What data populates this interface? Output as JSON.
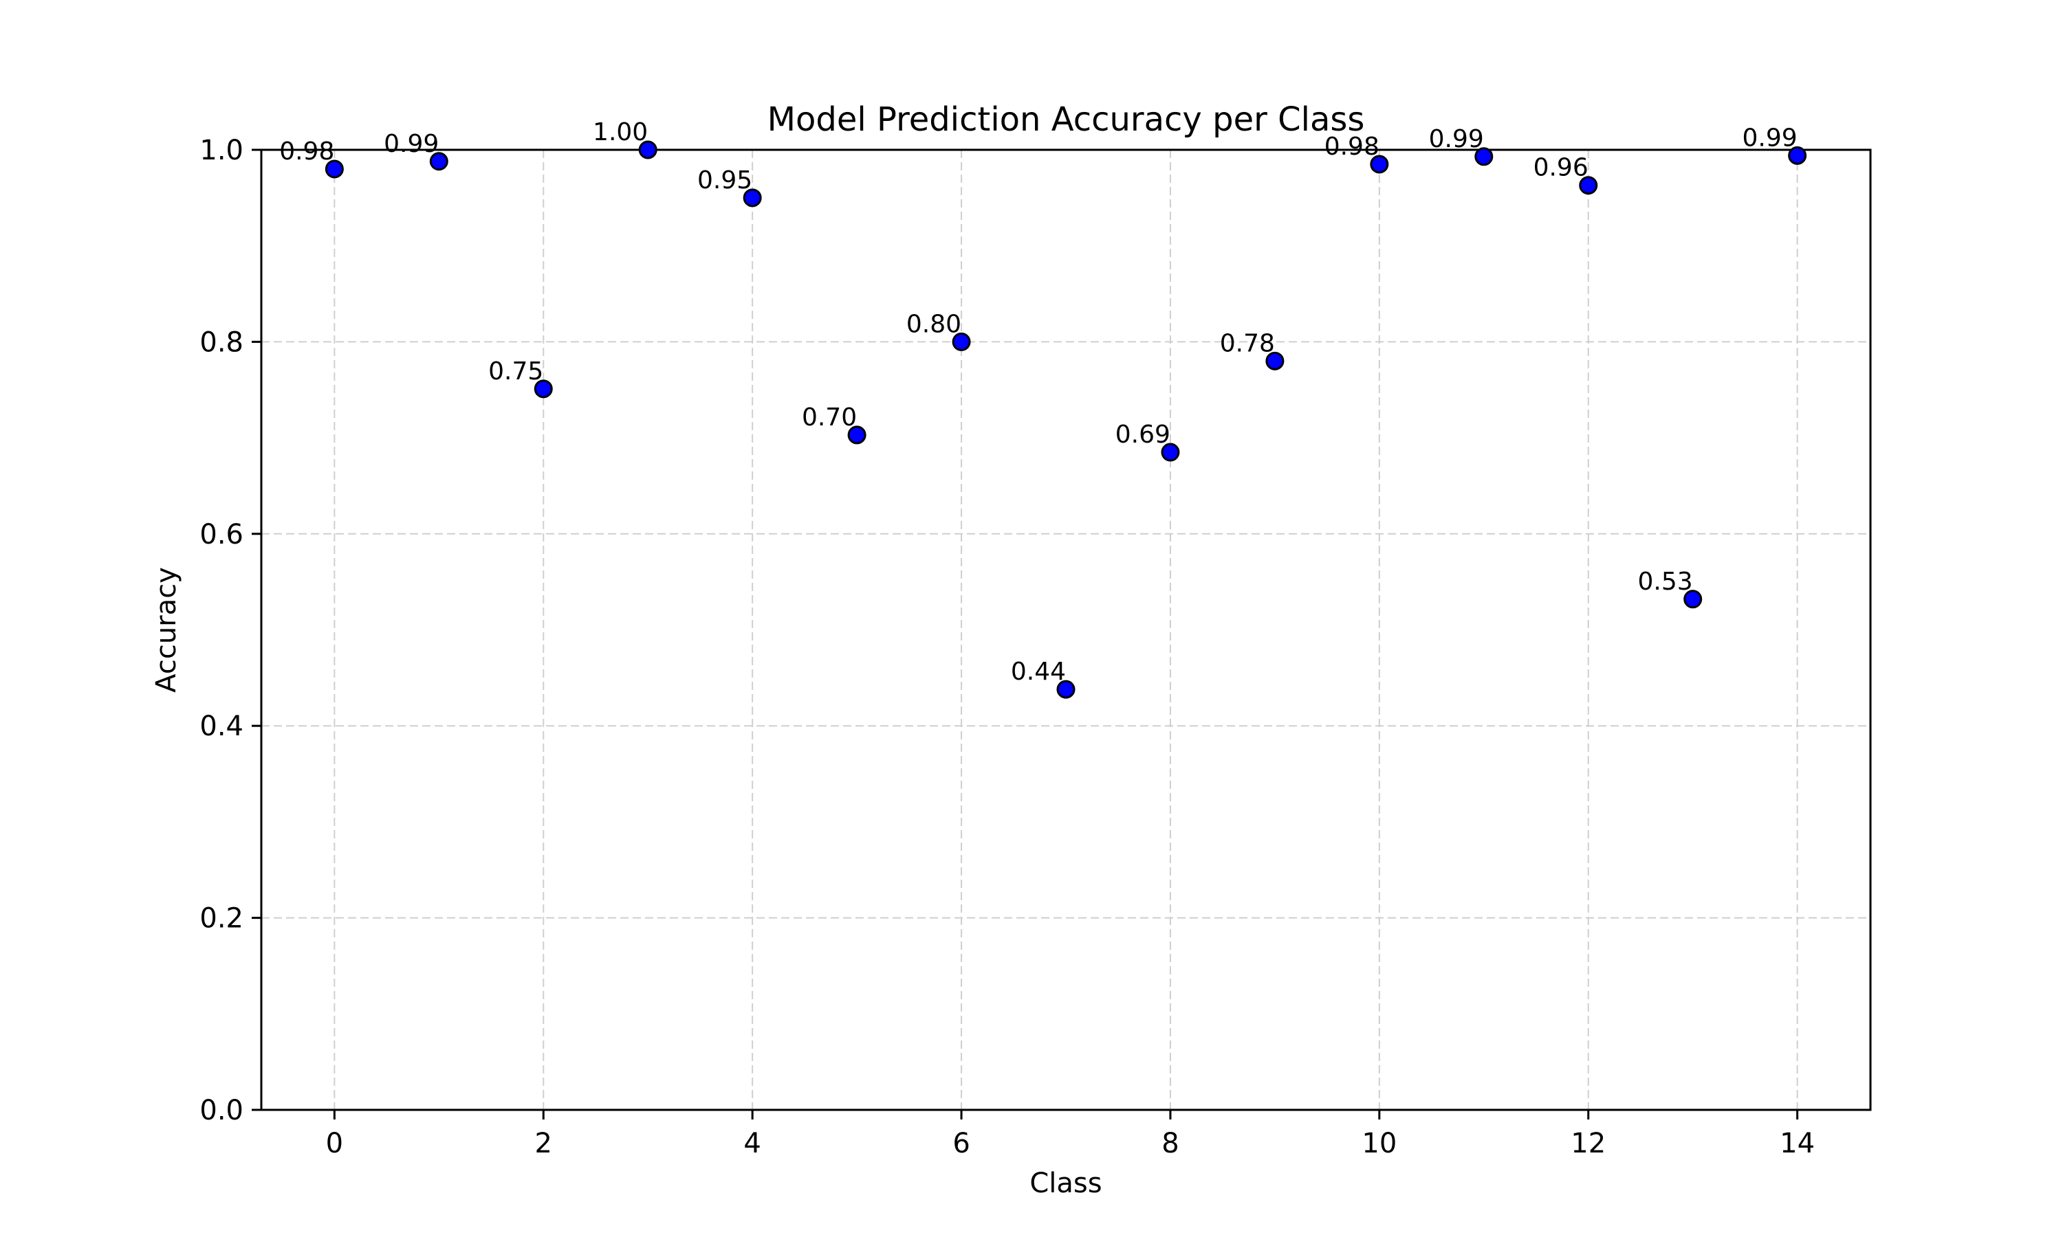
{
  "chart_data": {
    "type": "scatter",
    "title": "Model Prediction Accuracy per Class",
    "xlabel": "Class",
    "ylabel": "Accuracy",
    "xlim": [
      -0.7,
      14.7
    ],
    "ylim": [
      0.0,
      1.0
    ],
    "x_ticks": [
      0,
      2,
      4,
      6,
      8,
      10,
      12,
      14
    ],
    "y_ticks": [
      0.0,
      0.2,
      0.4,
      0.6,
      0.8,
      1.0
    ],
    "x_tick_labels": [
      "0",
      "2",
      "4",
      "6",
      "8",
      "10",
      "12",
      "14"
    ],
    "y_tick_labels": [
      "0.0",
      "0.2",
      "0.4",
      "0.6",
      "0.8",
      "1.0"
    ],
    "grid": true,
    "marker_color": "#0000ff",
    "marker_edge_color": "#000000",
    "x": [
      0,
      1,
      2,
      3,
      4,
      5,
      6,
      7,
      8,
      9,
      10,
      11,
      12,
      13,
      14
    ],
    "y": [
      0.98,
      0.988,
      0.751,
      1.0,
      0.95,
      0.703,
      0.8,
      0.438,
      0.685,
      0.78,
      0.985,
      0.993,
      0.963,
      0.532,
      0.994
    ],
    "data_labels": [
      "0.98",
      "0.99",
      "0.75",
      "1.00",
      "0.95",
      "0.70",
      "0.80",
      "0.44",
      "0.69",
      "0.78",
      "0.98",
      "0.99",
      "0.96",
      "0.53",
      "0.99"
    ]
  }
}
